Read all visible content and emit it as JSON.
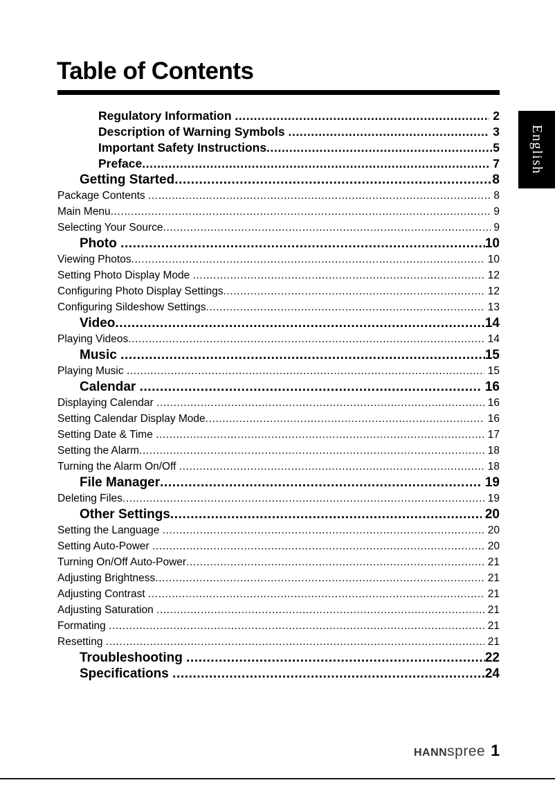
{
  "colors": {
    "ink": "#000000",
    "tab_background": "#000000",
    "tab_text": "#ffffff",
    "brand_text": "#333333"
  },
  "title": "Table of Contents",
  "language_tab": "English",
  "toc": [
    {
      "label": "Regulatory Information ",
      "page": " 2",
      "level": "front"
    },
    {
      "label": "Description of Warning Symbols ",
      "page": " 3",
      "level": "front"
    },
    {
      "label": "Important Safety Instructions",
      "page": "5",
      "level": "front"
    },
    {
      "label": "Preface",
      "page": " 7",
      "level": "front"
    },
    {
      "label": "Getting Started",
      "page": "8",
      "level": "section"
    },
    {
      "label": "Package Contents ",
      "page": " 8",
      "level": "sub"
    },
    {
      "label": "Main Menu",
      "page": " 9",
      "level": "sub"
    },
    {
      "label": "Selecting Your Source",
      "page": " 9",
      "level": "sub"
    },
    {
      "label": "Photo ",
      "page": "10",
      "level": "section"
    },
    {
      "label": "Viewing Photos",
      "page": " 10",
      "level": "sub"
    },
    {
      "label": "Setting Photo Display Mode ",
      "page": " 12",
      "level": "sub"
    },
    {
      "label": "Configuring Photo Display Settings",
      "page": " 12",
      "level": "sub"
    },
    {
      "label": "Configuring Sildeshow Settings",
      "page": " 13",
      "level": "sub"
    },
    {
      "label": "Video",
      "page": "14",
      "level": "section"
    },
    {
      "label": "Playing Videos",
      "page": " 14",
      "level": "sub"
    },
    {
      "label": "Music ",
      "page": "15",
      "level": "section"
    },
    {
      "label": "Playing Music ",
      "page": " 15",
      "level": "sub"
    },
    {
      "label": "Calendar ",
      "page": " 16",
      "level": "section"
    },
    {
      "label": "Displaying Calendar ",
      "page": " 16",
      "level": "sub"
    },
    {
      "label": "Setting Calendar Display Mode",
      "page": " 16",
      "level": "sub"
    },
    {
      "label": "Setting Date & Time ",
      "page": " 17",
      "level": "sub"
    },
    {
      "label": "Setting the Alarm",
      "page": " 18",
      "level": "sub"
    },
    {
      "label": "Turning the Alarm On/Off ",
      "page": " 18",
      "level": "sub"
    },
    {
      "label": "File Manager",
      "page": " 19",
      "level": "section"
    },
    {
      "label": "Deleting Files",
      "page": " 19",
      "level": "sub"
    },
    {
      "label": "Other Settings",
      "page": " 20",
      "level": "section"
    },
    {
      "label": "Setting the Language ",
      "page": " 20",
      "level": "sub"
    },
    {
      "label": "Setting Auto-Power ",
      "page": " 20",
      "level": "sub"
    },
    {
      "label": "Turning On/Off Auto-Power",
      "page": " 21",
      "level": "sub"
    },
    {
      "label": "Adjusting Brightness",
      "page": " 21",
      "level": "sub"
    },
    {
      "label": "Adjusting Contrast ",
      "page": " 21",
      "level": "sub"
    },
    {
      "label": "Adjusting Saturation ",
      "page": " 21",
      "level": "sub"
    },
    {
      "label": "Formating ",
      "page": " 21",
      "level": "sub"
    },
    {
      "label": "Resetting ",
      "page": " 21",
      "level": "sub"
    },
    {
      "label": "Troubleshooting ",
      "page": "22",
      "level": "section"
    },
    {
      "label": "Specifications ",
      "page": "24",
      "level": "section"
    }
  ],
  "footer": {
    "brand_bold": "HANN",
    "brand_light": "spree",
    "page_number": "1"
  }
}
